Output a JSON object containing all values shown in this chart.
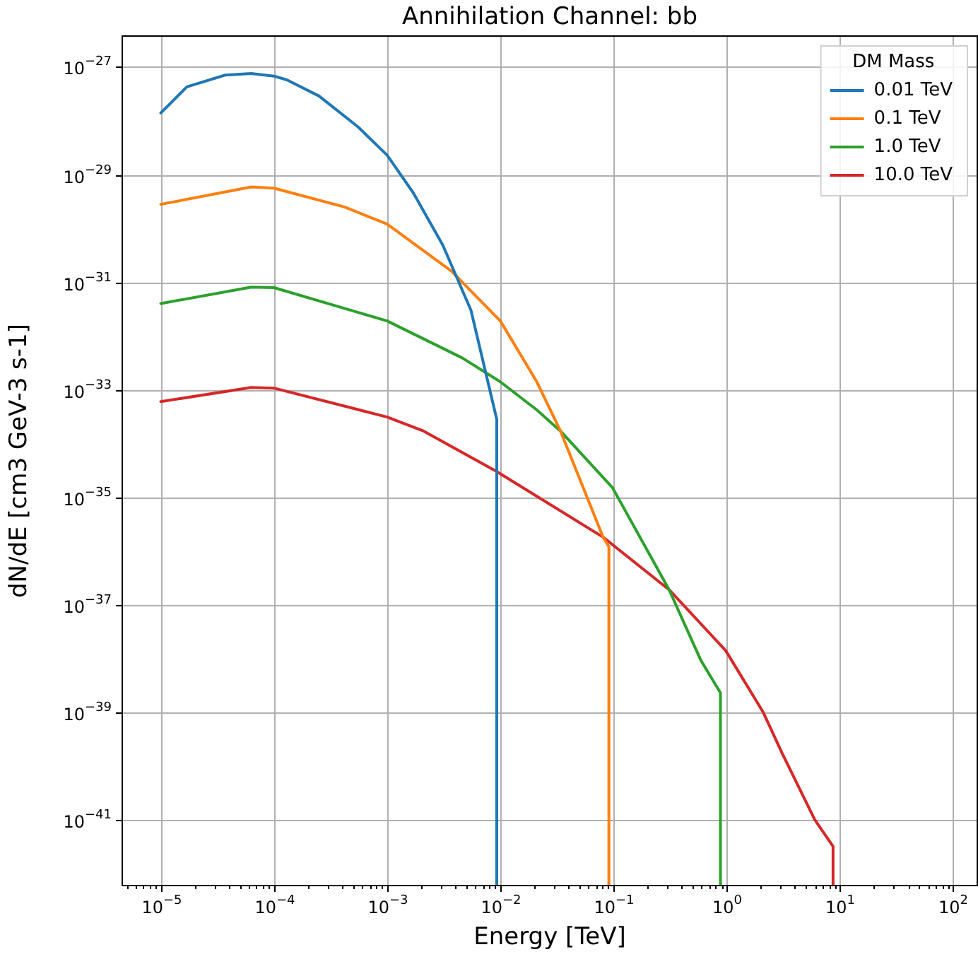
{
  "chart_data": {
    "type": "line",
    "title": "Annihilation Channel: bb",
    "xlabel": "Energy [TeV]",
    "ylabel": "dN/dE [cm3 GeV-3 s-1]",
    "legend_title": "DM Mass",
    "legend": "top right",
    "log": "xy",
    "grid": true,
    "marker": "none",
    "line_style": "solid",
    "xlim": [
      4.5e-06,
      166
    ],
    "ylim": [
      5.8e-43,
      3.9e-27
    ],
    "xticks": [
      {
        "value": 1e-05,
        "label": "10$^{−5}$"
      },
      {
        "value": 0.0001,
        "label": "10$^{−4}$"
      },
      {
        "value": 0.001,
        "label": "10$^{−3}$"
      },
      {
        "value": 0.01,
        "label": "10$^{−2}$"
      },
      {
        "value": 0.1,
        "label": "10$^{−1}$"
      },
      {
        "value": 1,
        "label": "10$^{0}$"
      },
      {
        "value": 10,
        "label": "10$^{1}$"
      },
      {
        "value": 100,
        "label": "10$^{2}$"
      },
      {
        "value": 5e-06,
        "label": null
      },
      {
        "value": 6e-06,
        "label": null
      },
      {
        "value": 7e-06,
        "label": null
      },
      {
        "value": 8e-06,
        "label": null
      },
      {
        "value": 9e-06,
        "label": null
      },
      {
        "value": 2e-05,
        "label": null
      },
      {
        "value": 3e-05,
        "label": null
      },
      {
        "value": 4e-05,
        "label": null
      },
      {
        "value": 5e-05,
        "label": null
      },
      {
        "value": 6e-05,
        "label": null
      },
      {
        "value": 7e-05,
        "label": null
      },
      {
        "value": 8e-05,
        "label": null
      },
      {
        "value": 9e-05,
        "label": null
      },
      {
        "value": 0.0002,
        "label": null
      },
      {
        "value": 0.0003,
        "label": null
      },
      {
        "value": 0.0004,
        "label": null
      },
      {
        "value": 0.0005,
        "label": null
      },
      {
        "value": 0.0006,
        "label": null
      },
      {
        "value": 0.0007,
        "label": null
      },
      {
        "value": 0.0008,
        "label": null
      },
      {
        "value": 0.0009,
        "label": null
      },
      {
        "value": 0.002,
        "label": null
      },
      {
        "value": 0.003,
        "label": null
      },
      {
        "value": 0.004,
        "label": null
      },
      {
        "value": 0.005,
        "label": null
      },
      {
        "value": 0.006,
        "label": null
      },
      {
        "value": 0.007,
        "label": null
      },
      {
        "value": 0.008,
        "label": null
      },
      {
        "value": 0.009,
        "label": null
      },
      {
        "value": 0.02,
        "label": null
      },
      {
        "value": 0.03,
        "label": null
      },
      {
        "value": 0.04,
        "label": null
      },
      {
        "value": 0.05,
        "label": null
      },
      {
        "value": 0.06,
        "label": null
      },
      {
        "value": 0.07,
        "label": null
      },
      {
        "value": 0.08,
        "label": null
      },
      {
        "value": 0.09,
        "label": null
      },
      {
        "value": 0.2,
        "label": null
      },
      {
        "value": 0.3,
        "label": null
      },
      {
        "value": 0.4,
        "label": null
      },
      {
        "value": 0.5,
        "label": null
      },
      {
        "value": 0.6,
        "label": null
      },
      {
        "value": 0.7,
        "label": null
      },
      {
        "value": 0.8,
        "label": null
      },
      {
        "value": 0.9,
        "label": null
      },
      {
        "value": 2,
        "label": null
      },
      {
        "value": 3,
        "label": null
      },
      {
        "value": 4,
        "label": null
      },
      {
        "value": 5,
        "label": null
      },
      {
        "value": 6,
        "label": null
      },
      {
        "value": 7,
        "label": null
      },
      {
        "value": 8,
        "label": null
      },
      {
        "value": 9,
        "label": null
      },
      {
        "value": 20,
        "label": null
      },
      {
        "value": 30,
        "label": null
      },
      {
        "value": 40,
        "label": null
      },
      {
        "value": 50,
        "label": null
      },
      {
        "value": 60,
        "label": null
      },
      {
        "value": 70,
        "label": null
      },
      {
        "value": 80,
        "label": null
      },
      {
        "value": 90,
        "label": null
      }
    ],
    "yticks": [
      {
        "value": 1e-27,
        "label": "10$^{−27}$"
      },
      {
        "value": 1e-29,
        "label": "10$^{−29}$"
      },
      {
        "value": 1e-31,
        "label": "10$^{−31}$"
      },
      {
        "value": 1e-33,
        "label": "10$^{−33}$"
      },
      {
        "value": 1e-35,
        "label": "10$^{−35}$"
      },
      {
        "value": 1e-37,
        "label": "10$^{−37}$"
      },
      {
        "value": 1e-39,
        "label": "10$^{−39}$"
      },
      {
        "value": 1e-41,
        "label": "10$^{−41}$"
      }
    ],
    "series": [
      {
        "name": "0.01 TeV",
        "color": "#1f77b4",
        "x": [
          1e-05,
          1.7e-05,
          3.7e-05,
          6.3e-05,
          0.0001,
          0.00013,
          0.00025,
          0.00055,
          0.001,
          0.0017,
          0.0031,
          0.0055,
          0.0093,
          0.0093
        ],
        "values": [
          1.4e-28,
          4.3e-28,
          7.1e-28,
          7.6e-28,
          6.8e-28,
          5.8e-28,
          2.9e-28,
          7.8e-29,
          2.3e-29,
          4.6e-30,
          4.9e-31,
          3e-32,
          2.8e-34,
          6e-43
        ]
      },
      {
        "name": "0.1 TeV",
        "color": "#ff7f0e",
        "x": [
          1e-05,
          6.3e-05,
          0.0001,
          0.00042,
          0.001,
          0.0037,
          0.01,
          0.021,
          0.034,
          0.081,
          0.091,
          0.091
        ],
        "values": [
          2.8e-30,
          5.9e-30,
          5.6e-30,
          2.5e-30,
          1.2e-30,
          1.6e-31,
          1.9e-32,
          1.4e-33,
          1.7e-34,
          1.8e-36,
          1.2e-36,
          6e-43
        ]
      },
      {
        "name": "1.0 TeV",
        "color": "#2ca02c",
        "x": [
          1e-05,
          6.3e-05,
          0.0001,
          0.001,
          0.0046,
          0.01,
          0.021,
          0.034,
          0.098,
          0.31,
          0.59,
          0.88,
          0.88
        ],
        "values": [
          4e-32,
          8.1e-32,
          7.9e-32,
          1.9e-32,
          3.9e-33,
          1.4e-33,
          4.2e-34,
          1.7e-34,
          1.5e-35,
          1.9e-37,
          9.3e-39,
          2.3e-39,
          6e-43
        ]
      },
      {
        "name": "10.0 TeV",
        "color": "#d62728",
        "x": [
          1e-05,
          6.3e-05,
          0.0001,
          0.001,
          0.0021,
          0.0093,
          0.081,
          0.31,
          0.98,
          2.1,
          3.1,
          6,
          8.7,
          8.7
        ],
        "values": [
          6e-34,
          1.1e-33,
          1.07e-33,
          3.1e-34,
          1.7e-34,
          3e-35,
          1.8e-36,
          1.9e-37,
          1.4e-38,
          1e-39,
          1.7e-40,
          1e-41,
          3.2e-42,
          6e-43
        ]
      }
    ]
  }
}
